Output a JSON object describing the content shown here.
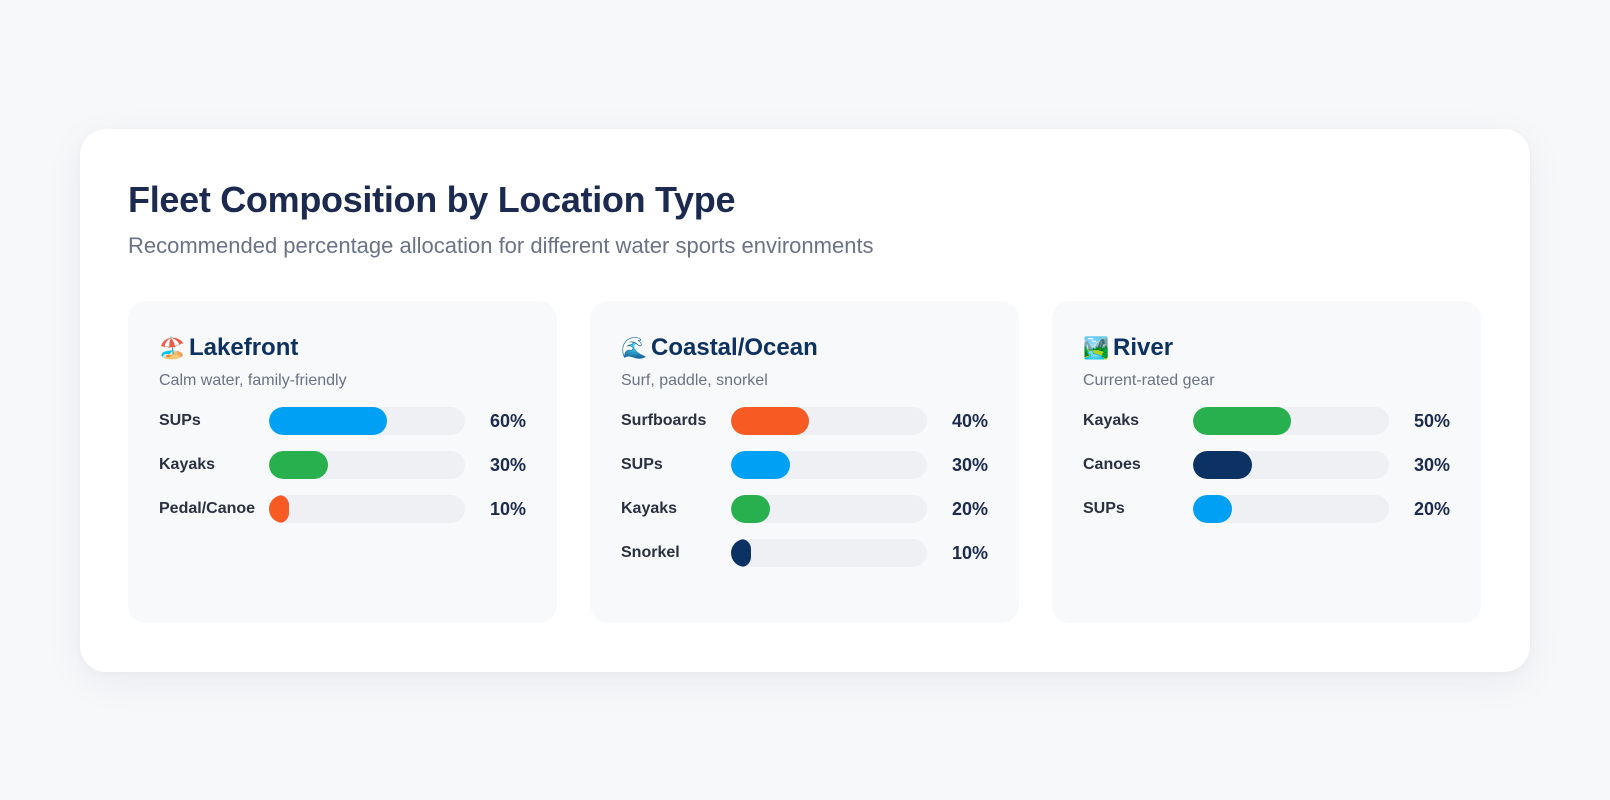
{
  "header": {
    "title": "Fleet Composition by Location Type",
    "subtitle": "Recommended percentage allocation for different water sports environments"
  },
  "colors": {
    "blue": "#00a0f5",
    "green": "#28b04f",
    "orange": "#f75a22",
    "navy": "#0b3263",
    "track": "#eef0f3",
    "title": "#1b2a4e"
  },
  "panels": [
    {
      "icon": "🏖️",
      "icon_name": "beach-umbrella-icon",
      "title": "Lakefront",
      "description": "Calm water, family-friendly",
      "rows": [
        {
          "label": "SUPs",
          "value": 60,
          "display": "60%",
          "color": "#00a0f5"
        },
        {
          "label": "Kayaks",
          "value": 30,
          "display": "30%",
          "color": "#28b04f"
        },
        {
          "label": "Pedal/Canoe",
          "value": 10,
          "display": "10%",
          "color": "#f75a22"
        }
      ]
    },
    {
      "icon": "🌊",
      "icon_name": "water-wave-icon",
      "title": "Coastal/Ocean",
      "description": "Surf, paddle, snorkel",
      "rows": [
        {
          "label": "Surfboards",
          "value": 40,
          "display": "40%",
          "color": "#f75a22"
        },
        {
          "label": "SUPs",
          "value": 30,
          "display": "30%",
          "color": "#00a0f5"
        },
        {
          "label": "Kayaks",
          "value": 20,
          "display": "20%",
          "color": "#28b04f"
        },
        {
          "label": "Snorkel",
          "value": 10,
          "display": "10%",
          "color": "#0b3263"
        }
      ]
    },
    {
      "icon": "🏞️",
      "icon_name": "national-park-icon",
      "title": "River",
      "description": "Current-rated gear",
      "rows": [
        {
          "label": "Kayaks",
          "value": 50,
          "display": "50%",
          "color": "#28b04f"
        },
        {
          "label": "Canoes",
          "value": 30,
          "display": "30%",
          "color": "#0b3263"
        },
        {
          "label": "SUPs",
          "value": 20,
          "display": "20%",
          "color": "#00a0f5"
        }
      ]
    }
  ],
  "chart_data": {
    "type": "bar",
    "orientation": "horizontal",
    "title": "Fleet Composition by Location Type",
    "subtitle": "Recommended percentage allocation for different water sports environments",
    "xlabel": "",
    "ylabel": "",
    "xlim": [
      0,
      100
    ],
    "unit": "%",
    "grid": false,
    "legend": "none",
    "groups": [
      {
        "name": "Lakefront",
        "description": "Calm water, family-friendly",
        "categories": [
          "SUPs",
          "Kayaks",
          "Pedal/Canoe"
        ],
        "values": [
          60,
          30,
          10
        ]
      },
      {
        "name": "Coastal/Ocean",
        "description": "Surf, paddle, snorkel",
        "categories": [
          "Surfboards",
          "SUPs",
          "Kayaks",
          "Snorkel"
        ],
        "values": [
          40,
          30,
          20,
          10
        ]
      },
      {
        "name": "River",
        "description": "Current-rated gear",
        "categories": [
          "Kayaks",
          "Canoes",
          "SUPs"
        ],
        "values": [
          50,
          30,
          20
        ]
      }
    ]
  }
}
